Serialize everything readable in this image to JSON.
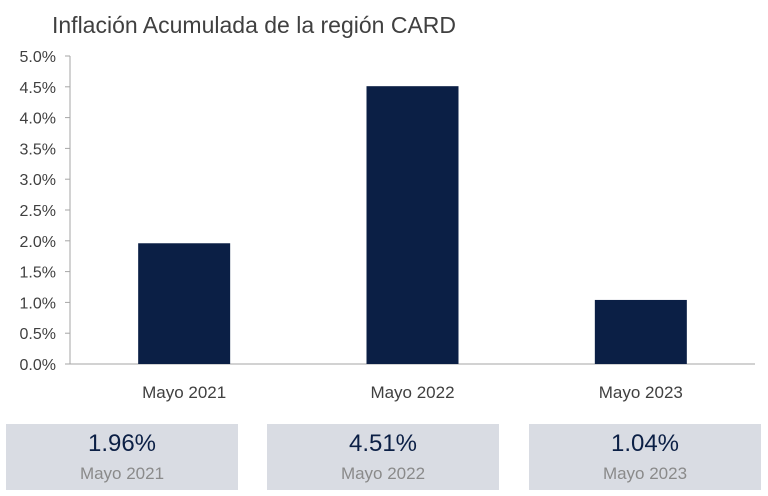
{
  "chart_data": {
    "type": "bar",
    "title": "Inflación Acumulada de la región CARD",
    "categories": [
      "Mayo 2021",
      "Mayo 2022",
      "Mayo 2023"
    ],
    "values": [
      1.96,
      4.51,
      1.04
    ],
    "unit": "%",
    "ylim": [
      0,
      5
    ],
    "yticks": [
      "0.0%",
      "0.5%",
      "1.0%",
      "1.5%",
      "2.0%",
      "2.5%",
      "3.0%",
      "3.5%",
      "4.0%",
      "4.5%",
      "5.0%"
    ],
    "grid": false,
    "legend": "none",
    "bar_color": "#0b1f45"
  },
  "cards": [
    {
      "value": "1.96%",
      "label": "Mayo 2021"
    },
    {
      "value": "4.51%",
      "label": "Mayo 2022"
    },
    {
      "value": "1.04%",
      "label": "Mayo 2023"
    }
  ],
  "colors": {
    "card_bg": "#d9dce3",
    "value_text": "#0b1f45",
    "axis": "#a6a6a6"
  }
}
